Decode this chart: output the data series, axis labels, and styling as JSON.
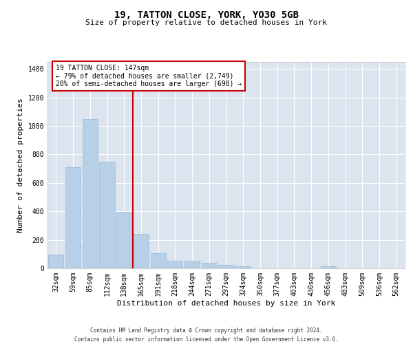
{
  "title": "19, TATTON CLOSE, YORK, YO30 5GB",
  "subtitle": "Size of property relative to detached houses in York",
  "xlabel": "Distribution of detached houses by size in York",
  "ylabel": "Number of detached properties",
  "footer_line1": "Contains HM Land Registry data © Crown copyright and database right 2024.",
  "footer_line2": "Contains public sector information licensed under the Open Government Licence v3.0.",
  "annotation_line1": "19 TATTON CLOSE: 147sqm",
  "annotation_line2": "← 79% of detached houses are smaller (2,749)",
  "annotation_line3": "20% of semi-detached houses are larger (698) →",
  "bar_color": "#b8cfe8",
  "bar_edge_color": "#9ab8d8",
  "vline_color": "#cc0000",
  "annotation_box_edgecolor": "#cc0000",
  "background_color": "#dce4f0",
  "fig_background": "#ffffff",
  "categories": [
    "32sqm",
    "59sqm",
    "85sqm",
    "112sqm",
    "138sqm",
    "165sqm",
    "191sqm",
    "218sqm",
    "244sqm",
    "271sqm",
    "297sqm",
    "324sqm",
    "350sqm",
    "377sqm",
    "403sqm",
    "430sqm",
    "456sqm",
    "483sqm",
    "509sqm",
    "536sqm",
    "562sqm"
  ],
  "values": [
    97,
    710,
    1050,
    750,
    395,
    240,
    105,
    55,
    55,
    40,
    25,
    15,
    0,
    0,
    0,
    0,
    15,
    0,
    0,
    0,
    0
  ],
  "ylim": [
    0,
    1450
  ],
  "yticks": [
    0,
    200,
    400,
    600,
    800,
    1000,
    1200,
    1400
  ],
  "vline_x": 4.5,
  "title_fontsize": 10,
  "subtitle_fontsize": 8,
  "axis_label_fontsize": 8,
  "tick_fontsize": 7,
  "footer_fontsize": 5.5
}
